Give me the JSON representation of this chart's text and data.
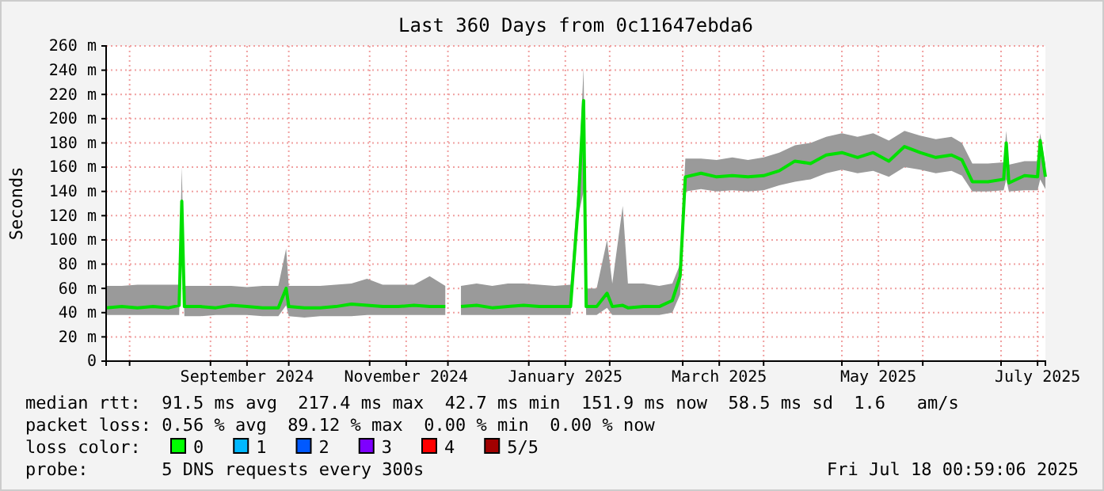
{
  "chart_data": {
    "type": "line",
    "title": "Last 360 Days from 0c11647ebda6",
    "ylabel": "Seconds",
    "grid": true,
    "line_style": "solid",
    "xlim": [
      "2024-07-23",
      "2025-07-18"
    ],
    "xticks": [
      {
        "value": "2024-08-01",
        "label": null
      },
      {
        "value": "2024-09-01",
        "label": null
      },
      {
        "value": "2024-09-15",
        "label": "September 2024"
      },
      {
        "value": "2024-10-01",
        "label": null
      },
      {
        "value": "2024-11-01",
        "label": null
      },
      {
        "value": "2024-11-15",
        "label": "November 2024"
      },
      {
        "value": "2024-12-01",
        "label": null
      },
      {
        "value": "2025-01-01",
        "label": null
      },
      {
        "value": "2025-01-15",
        "label": "January 2025"
      },
      {
        "value": "2025-02-01",
        "label": null
      },
      {
        "value": "2025-03-01",
        "label": null
      },
      {
        "value": "2025-03-15",
        "label": "March 2025"
      },
      {
        "value": "2025-04-01",
        "label": null
      },
      {
        "value": "2025-05-01",
        "label": null
      },
      {
        "value": "2025-05-15",
        "label": "May 2025"
      },
      {
        "value": "2025-06-01",
        "label": null
      },
      {
        "value": "2025-07-01",
        "label": null
      },
      {
        "value": "2025-07-15",
        "label": "July 2025"
      }
    ],
    "ylim": [
      0,
      260
    ],
    "yticks": [
      0,
      {
        "value": 20,
        "label": "20 m"
      },
      {
        "value": 40,
        "label": "40 m"
      },
      {
        "value": 60,
        "label": "60 m"
      },
      {
        "value": 80,
        "label": "80 m"
      },
      {
        "value": 100,
        "label": "100 m"
      },
      {
        "value": 120,
        "label": "120 m"
      },
      {
        "value": 140,
        "label": "140 m"
      },
      {
        "value": 160,
        "label": "160 m"
      },
      {
        "value": 180,
        "label": "180 m"
      },
      {
        "value": 200,
        "label": "200 m"
      },
      {
        "value": 220,
        "label": "220 m"
      },
      {
        "value": 240,
        "label": "240 m"
      },
      {
        "value": 260,
        "label": "260 m"
      }
    ],
    "x": [
      "2024-07-23",
      "2024-07-29",
      "2024-08-04",
      "2024-08-10",
      "2024-08-16",
      "2024-08-20",
      "2024-08-21",
      "2024-08-22",
      "2024-08-28",
      "2024-09-03",
      "2024-09-09",
      "2024-09-15",
      "2024-09-21",
      "2024-09-27",
      "2024-09-30",
      "2024-10-01",
      "2024-10-07",
      "2024-10-13",
      "2024-10-19",
      "2024-10-25",
      "2024-10-31",
      "2024-11-06",
      "2024-11-12",
      "2024-11-18",
      "2024-11-24",
      "2024-11-30",
      "2024-12-03",
      "2024-12-06",
      "2024-12-12",
      "2024-12-18",
      "2024-12-24",
      "2024-12-30",
      "2025-01-05",
      "2025-01-11",
      "2025-01-17",
      "2025-01-20",
      "2025-01-22",
      "2025-01-23",
      "2025-01-27",
      "2025-01-31",
      "2025-02-02",
      "2025-02-06",
      "2025-02-08",
      "2025-02-14",
      "2025-02-20",
      "2025-02-25",
      "2025-02-28",
      "2025-03-02",
      "2025-03-08",
      "2025-03-14",
      "2025-03-20",
      "2025-03-26",
      "2025-04-01",
      "2025-04-07",
      "2025-04-13",
      "2025-04-19",
      "2025-04-25",
      "2025-05-01",
      "2025-05-07",
      "2025-05-13",
      "2025-05-19",
      "2025-05-25",
      "2025-05-31",
      "2025-06-06",
      "2025-06-12",
      "2025-06-16",
      "2025-06-20",
      "2025-06-26",
      "2025-07-02",
      "2025-07-03",
      "2025-07-04",
      "2025-07-10",
      "2025-07-15",
      "2025-07-16",
      "2025-07-18"
    ],
    "series": [
      {
        "color": "#00e000",
        "values": [
          44,
          45,
          44,
          45,
          44,
          46,
          132,
          45,
          45,
          44,
          46,
          45,
          44,
          44,
          60,
          45,
          44,
          44,
          45,
          47,
          46,
          45,
          45,
          46,
          45,
          45,
          null,
          45,
          46,
          44,
          45,
          46,
          45,
          45,
          45,
          130,
          215,
          45,
          45,
          56,
          45,
          46,
          44,
          45,
          45,
          50,
          70,
          152,
          155,
          152,
          153,
          152,
          153,
          157,
          165,
          163,
          170,
          172,
          168,
          172,
          165,
          177,
          172,
          168,
          170,
          166,
          148,
          148,
          150,
          180,
          147,
          153,
          152,
          182,
          152
        ],
        "lower": [
          38,
          38,
          38,
          38,
          38,
          38,
          125,
          37,
          37,
          38,
          38,
          38,
          37,
          37,
          46,
          37,
          36,
          37,
          37,
          37,
          38,
          38,
          38,
          38,
          38,
          38,
          null,
          38,
          38,
          38,
          38,
          38,
          38,
          38,
          38,
          120,
          140,
          38,
          38,
          44,
          38,
          38,
          38,
          38,
          38,
          40,
          55,
          140,
          142,
          140,
          141,
          140,
          141,
          145,
          148,
          150,
          155,
          158,
          155,
          157,
          152,
          160,
          158,
          155,
          157,
          153,
          140,
          140,
          141,
          150,
          140,
          141,
          141,
          150,
          142
        ],
        "upper": [
          62,
          62,
          63,
          63,
          63,
          63,
          160,
          62,
          62,
          62,
          62,
          61,
          62,
          62,
          93,
          62,
          62,
          62,
          63,
          64,
          68,
          63,
          63,
          63,
          70,
          62,
          null,
          62,
          64,
          62,
          64,
          64,
          63,
          62,
          63,
          148,
          242,
          60,
          60,
          100,
          64,
          128,
          64,
          64,
          62,
          64,
          80,
          167,
          167,
          166,
          168,
          166,
          168,
          172,
          178,
          180,
          185,
          188,
          185,
          188,
          182,
          190,
          186,
          183,
          185,
          180,
          163,
          163,
          164,
          190,
          162,
          165,
          165,
          188,
          162
        ]
      }
    ],
    "annotations": [
      "median rtt:  91.5 ms avg  217.4 ms max  42.7 ms min  151.9 ms now  58.5 ms sd  1.6   am/s",
      "packet loss: 0.56 % avg  89.12 % max  0.00 % min  0.00 % now",
      "loss color:",
      "0",
      "1",
      "2",
      "3",
      "4",
      "5/5",
      "probe:       5 DNS requests every 300s",
      "Fri Jul 18 00:59:06 2025"
    ]
  }
}
